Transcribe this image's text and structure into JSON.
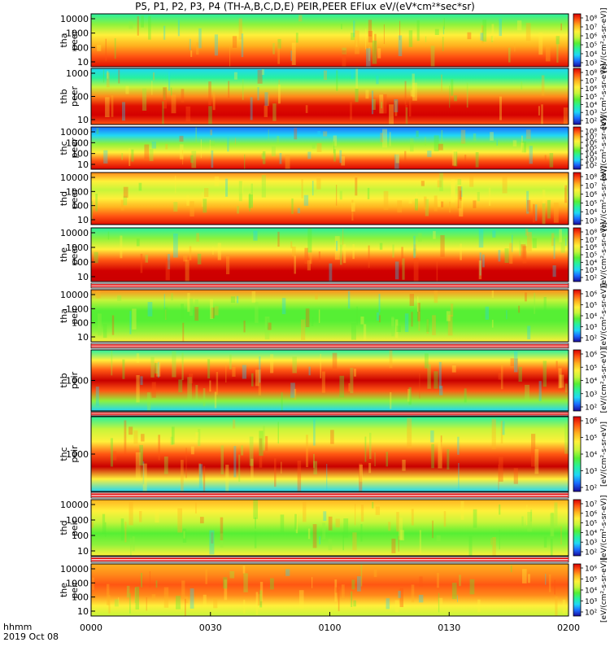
{
  "title": "P5, P1, P2, P3, P4 (TH-A,B,C,D,E) PEIR,PEER EFlux eV/(eV*cm²*sec*sr)",
  "corner": {
    "line1": "hhmm",
    "line2": "2019 Oct 08"
  },
  "colorbar_label": "[eV/(cm²-s-sr-eV)]",
  "chart_data": {
    "type": "heatmap",
    "x_axis": {
      "ticks": [
        "0000",
        "0030",
        "0100",
        "0130",
        "0200"
      ]
    },
    "panels": [
      {
        "id": "tha-peer",
        "ylabel": [
          "tha",
          "peer"
        ],
        "yticks": [
          "10000",
          "1000",
          "100",
          "10"
        ],
        "cbar_ticks": [
          "10⁸",
          "10⁷",
          "10⁶",
          "10⁵",
          "10⁴",
          "10³"
        ]
      },
      {
        "id": "thb-peer",
        "ylabel": [
          "thb",
          "peer"
        ],
        "yticks": [
          "1000",
          "100",
          "10"
        ],
        "cbar_ticks": [
          "10⁸",
          "10⁷",
          "10⁶",
          "10⁵",
          "10⁴",
          "10³",
          "10²"
        ]
      },
      {
        "id": "thc-peer",
        "ylabel": [
          "thc",
          "peer"
        ],
        "yticks": [
          "10000",
          "1000",
          "100",
          "10"
        ],
        "cbar_ticks": [
          "10⁸",
          "10⁷",
          "10⁶",
          "10⁵",
          "10⁴",
          "10³",
          "10²"
        ]
      },
      {
        "id": "thd-peer",
        "ylabel": [
          "thd",
          "peer"
        ],
        "yticks": [
          "10000",
          "1000",
          "100",
          "10"
        ],
        "cbar_ticks": [
          "10⁸",
          "10⁷",
          "10⁶",
          "10⁵",
          "10⁴",
          "10³"
        ]
      },
      {
        "id": "the-peer",
        "ylabel": [
          "the",
          "peer"
        ],
        "yticks": [
          "10000",
          "1000",
          "100",
          "10"
        ],
        "cbar_ticks": [
          "10⁸",
          "10⁷",
          "10⁶",
          "10⁵",
          "10⁴",
          "10³",
          "10²"
        ]
      },
      {
        "id": "tha-peir",
        "ylabel": [
          "tha",
          "peir"
        ],
        "yticks": [
          "10000",
          "1000",
          "100",
          "10"
        ],
        "cbar_ticks": [
          "10⁶",
          "10⁵",
          "10⁴",
          "10³",
          "10²"
        ]
      },
      {
        "id": "thb-peir",
        "ylabel": [
          "thb",
          "peir"
        ],
        "yticks": [
          "1000"
        ],
        "cbar_ticks": [
          "10⁶",
          "10⁵",
          "10⁴",
          "10³",
          "10²"
        ]
      },
      {
        "id": "thc-peir",
        "ylabel": [
          "thc",
          "peir"
        ],
        "yticks": [
          "1000"
        ],
        "cbar_ticks": [
          "10⁶",
          "10⁵",
          "10⁴",
          "10³",
          "10²"
        ]
      },
      {
        "id": "thd-peir",
        "ylabel": [
          "thd",
          "peir"
        ],
        "yticks": [
          "10000",
          "1000",
          "100",
          "10"
        ],
        "cbar_ticks": [
          "10⁷",
          "10⁶",
          "10⁵",
          "10⁴",
          "10³",
          "10²"
        ]
      },
      {
        "id": "the-peir",
        "ylabel": [
          "the",
          "peir"
        ],
        "yticks": [
          "10000",
          "1000",
          "100",
          "10"
        ],
        "cbar_ticks": [
          "10⁶",
          "10⁵",
          "10⁴",
          "10³",
          "10²"
        ]
      }
    ]
  }
}
